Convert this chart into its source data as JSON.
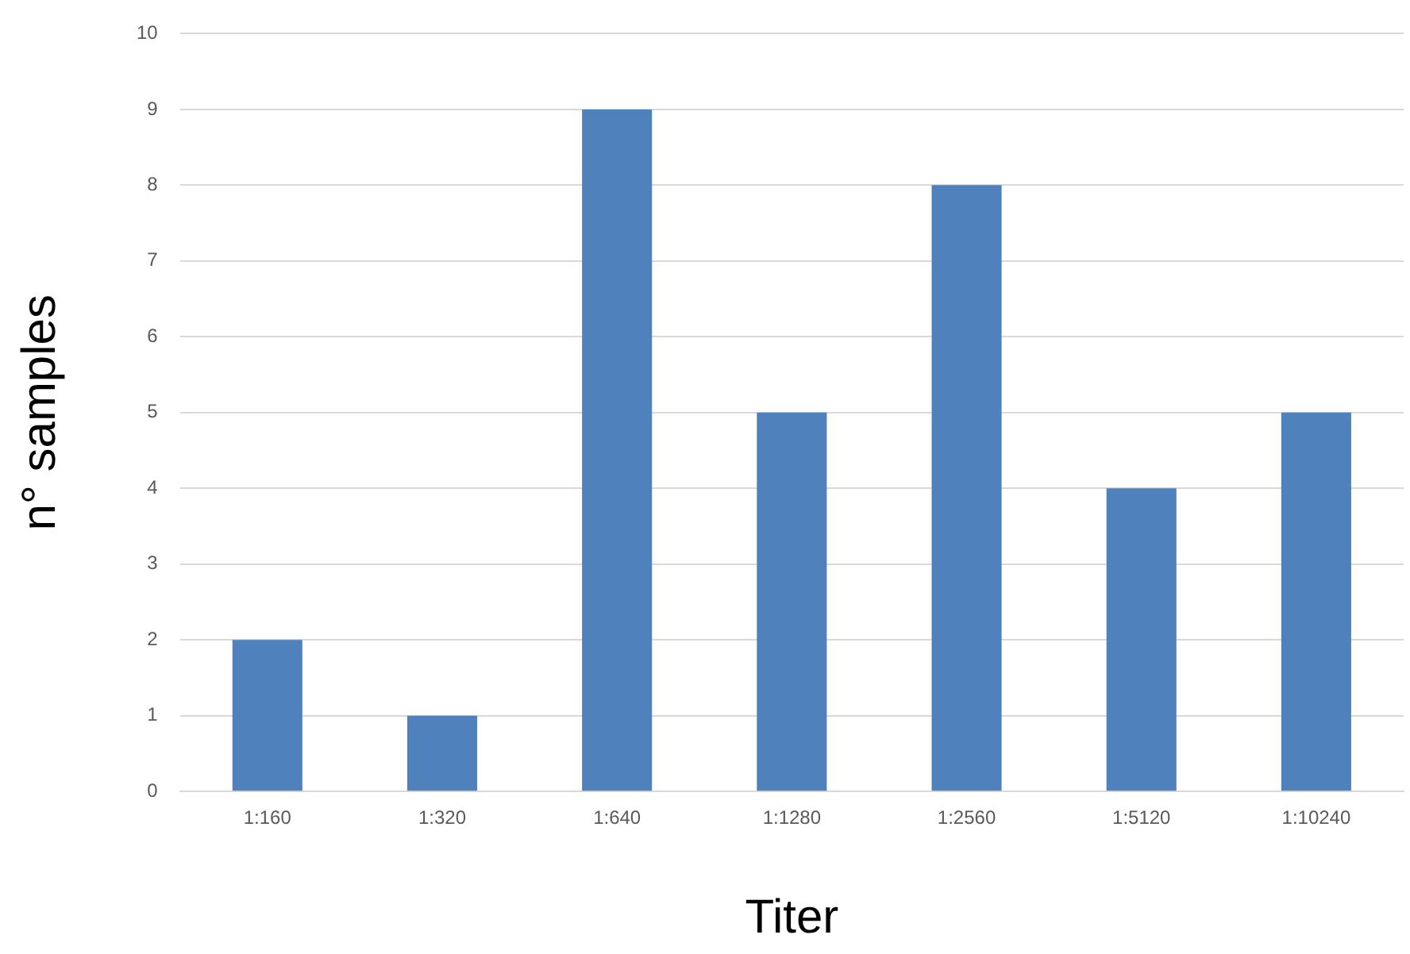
{
  "chart_data": {
    "type": "bar",
    "xlabel": "Titer",
    "ylabel": "n° samples",
    "categories": [
      "1:160",
      "1:320",
      "1:640",
      "1:1280",
      "1:2560",
      "1:5120",
      "1:10240"
    ],
    "values": [
      2,
      1,
      9,
      5,
      8,
      4,
      5
    ],
    "color": "#4f81bd",
    "ylim": [
      0,
      10
    ],
    "yticks": [
      0,
      1,
      2,
      3,
      4,
      5,
      6,
      7,
      8,
      9,
      10
    ],
    "grid": "y",
    "legend": false
  }
}
